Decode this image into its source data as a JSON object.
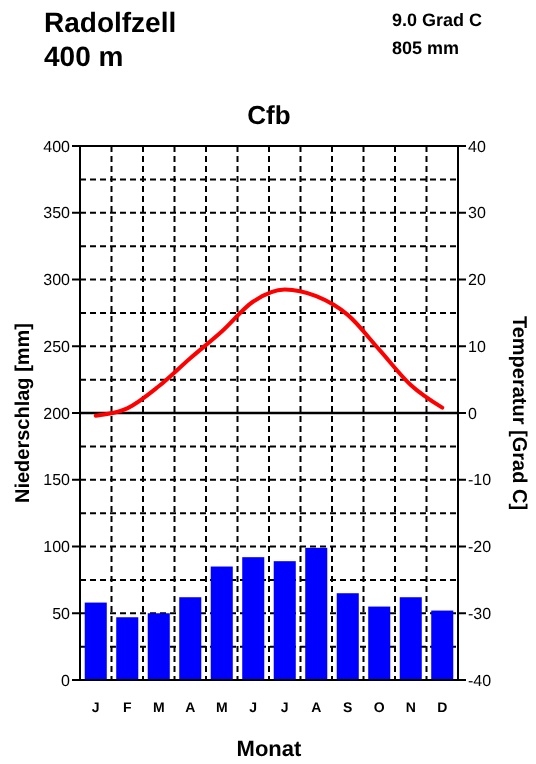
{
  "chart_data": {
    "type": "bar",
    "title": "Cfb",
    "xlabel": "Monat",
    "ylabel": "Niederschlag [mm]",
    "y2label": "Temperatur [Grad C]",
    "annotations": [
      "Radolfzell",
      "400 m",
      "9.0 Grad C",
      "805 mm"
    ],
    "categories": [
      "J",
      "F",
      "M",
      "A",
      "M",
      "J",
      "J",
      "A",
      "S",
      "O",
      "N",
      "D"
    ],
    "series": [
      {
        "color": "#0000ff",
        "values": [
          58,
          47,
          50,
          62,
          85,
          92,
          89,
          99,
          65,
          55,
          62,
          52
        ]
      },
      {
        "type": "line",
        "axis": "y2",
        "color": "#ff0000",
        "values": [
          -0.4,
          0.7,
          4,
          8.2,
          12.2,
          16.7,
          18.5,
          17.5,
          14.7,
          9.5,
          4.2,
          0.8
        ]
      }
    ],
    "ylim": [
      0,
      400
    ],
    "yticks": [
      0,
      {
        "value": 25,
        "label": null
      },
      50,
      {
        "value": 75,
        "label": null
      },
      100,
      {
        "value": 125,
        "label": null
      },
      150,
      {
        "value": 175,
        "label": null
      },
      200,
      {
        "value": 225,
        "label": null
      },
      250,
      {
        "value": 275,
        "label": null
      },
      300,
      {
        "value": 325,
        "label": null
      },
      350,
      {
        "value": 375,
        "label": null
      },
      400
    ],
    "y2lim": [
      -40,
      40
    ],
    "y2ticks": [
      -40,
      -30,
      -20,
      -10,
      0,
      10,
      20,
      30,
      40
    ],
    "ref_lines": [
      {
        "axis": "y2",
        "value": 0
      }
    ],
    "grid": true
  }
}
